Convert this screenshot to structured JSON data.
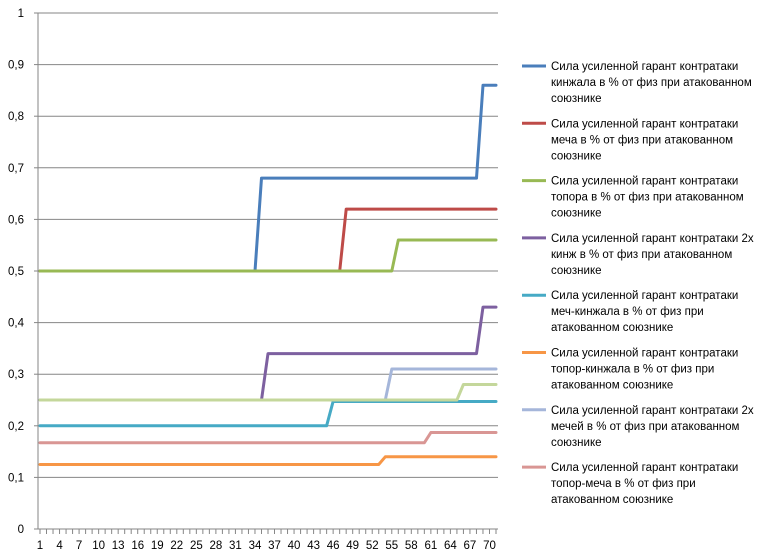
{
  "chart_data": {
    "type": "line",
    "title": "",
    "xlabel": "",
    "ylabel": "",
    "ylim": [
      0,
      1
    ],
    "y_ticks": [
      "0",
      "0,1",
      "0,2",
      "0,3",
      "0,4",
      "0,5",
      "0,6",
      "0,7",
      "0,8",
      "0,9",
      "1"
    ],
    "x_ticks": [
      "1",
      "4",
      "7",
      "10",
      "13",
      "16",
      "19",
      "22",
      "25",
      "28",
      "31",
      "34",
      "37",
      "40",
      "43",
      "46",
      "49",
      "52",
      "55",
      "58",
      "61",
      "64",
      "67",
      "70"
    ],
    "x_range": [
      1,
      71
    ],
    "grid": "horizontal",
    "legend_position": "right",
    "series": [
      {
        "name": "Сила усиленной гарант контратаки кинжала в % от физ при атакованном союзнике",
        "legend_lines": [
          "Сила усиленной гарант контратаки",
          "кинжала в % от физ при атакованном",
          "союзнике"
        ],
        "color": "#4a7ebb",
        "x": [
          1,
          34,
          35,
          68,
          69,
          71
        ],
        "y": [
          0.5,
          0.5,
          0.68,
          0.68,
          0.86,
          0.86
        ]
      },
      {
        "name": "Сила усиленной гарант контратаки меча в % от физ при атакованном союзнике",
        "legend_lines": [
          "Сила усиленной гарант контратаки",
          "меча в % от физ при атакованном",
          "союзнике"
        ],
        "color": "#be4b48",
        "x": [
          1,
          47,
          48,
          71
        ],
        "y": [
          0.5,
          0.5,
          0.62,
          0.62
        ]
      },
      {
        "name": "Сила усиленной гарант контратаки топора в % от физ при атакованном союзнике",
        "legend_lines": [
          "Сила усиленной гарант контратаки",
          "топора в % от физ при атакованном",
          "союзнике"
        ],
        "color": "#98b954",
        "x": [
          1,
          55,
          56,
          71
        ],
        "y": [
          0.5,
          0.5,
          0.56,
          0.56
        ]
      },
      {
        "name": "Сила усиленной гарант контратаки 2х кинж в % от физ при атакованном союзнике",
        "legend_lines": [
          "Сила усиленной гарант контратаки 2х",
          "кинж в % от физ при атакованном",
          "союзнике"
        ],
        "color": "#7d60a0",
        "x": [
          35,
          36,
          68,
          69,
          71
        ],
        "y": [
          0.25,
          0.34,
          0.34,
          0.43,
          0.43
        ]
      },
      {
        "name": "Сила усиленной гарант контратаки меч-кинжала в % от физ при атакованном союзнике",
        "legend_lines": [
          "Сила усиленной гарант контратаки",
          "меч-кинжала в % от физ при",
          "атакованном союзнике"
        ],
        "color": "#46aac5",
        "x": [
          1,
          45,
          46,
          71
        ],
        "y": [
          0.2,
          0.2,
          0.247,
          0.247
        ]
      },
      {
        "name": "Сила усиленной гарант контратаки топор-кинжала в % от физ при атакованном союзнике",
        "legend_lines": [
          "Сила усиленной гарант контратаки",
          "топор-кинжала в % от физ при",
          "атакованном союзнике"
        ],
        "color": "#f79646",
        "x": [
          1,
          53,
          54,
          71
        ],
        "y": [
          0.125,
          0.125,
          0.14,
          0.14
        ]
      },
      {
        "name": "Сила усиленной гарант контратаки 2х мечей в % от физ при атакованном союзнике",
        "legend_lines": [
          "Сила усиленной гарант контратаки 2х",
          "мечей в % от физ при атакованном",
          "союзнике"
        ],
        "color": "#a5b6da",
        "x": [
          1,
          54,
          55,
          71
        ],
        "y": [
          0.25,
          0.25,
          0.31,
          0.31
        ]
      },
      {
        "name": "Сила усиленной гарант контратаки топор-меча в % от физ при атакованном союзнике",
        "legend_lines": [
          "Сила усиленной гарант контратаки",
          "топор-меча в % от физ при",
          "атакованном союзнике"
        ],
        "color": "#d99694",
        "x": [
          1,
          60,
          61,
          71
        ],
        "y": [
          0.167,
          0.167,
          0.187,
          0.187
        ]
      },
      {
        "name": "",
        "legend_lines": [],
        "color": "#c4d79b",
        "x": [
          1,
          65,
          66,
          71
        ],
        "y": [
          0.25,
          0.25,
          0.28,
          0.28
        ]
      }
    ]
  }
}
